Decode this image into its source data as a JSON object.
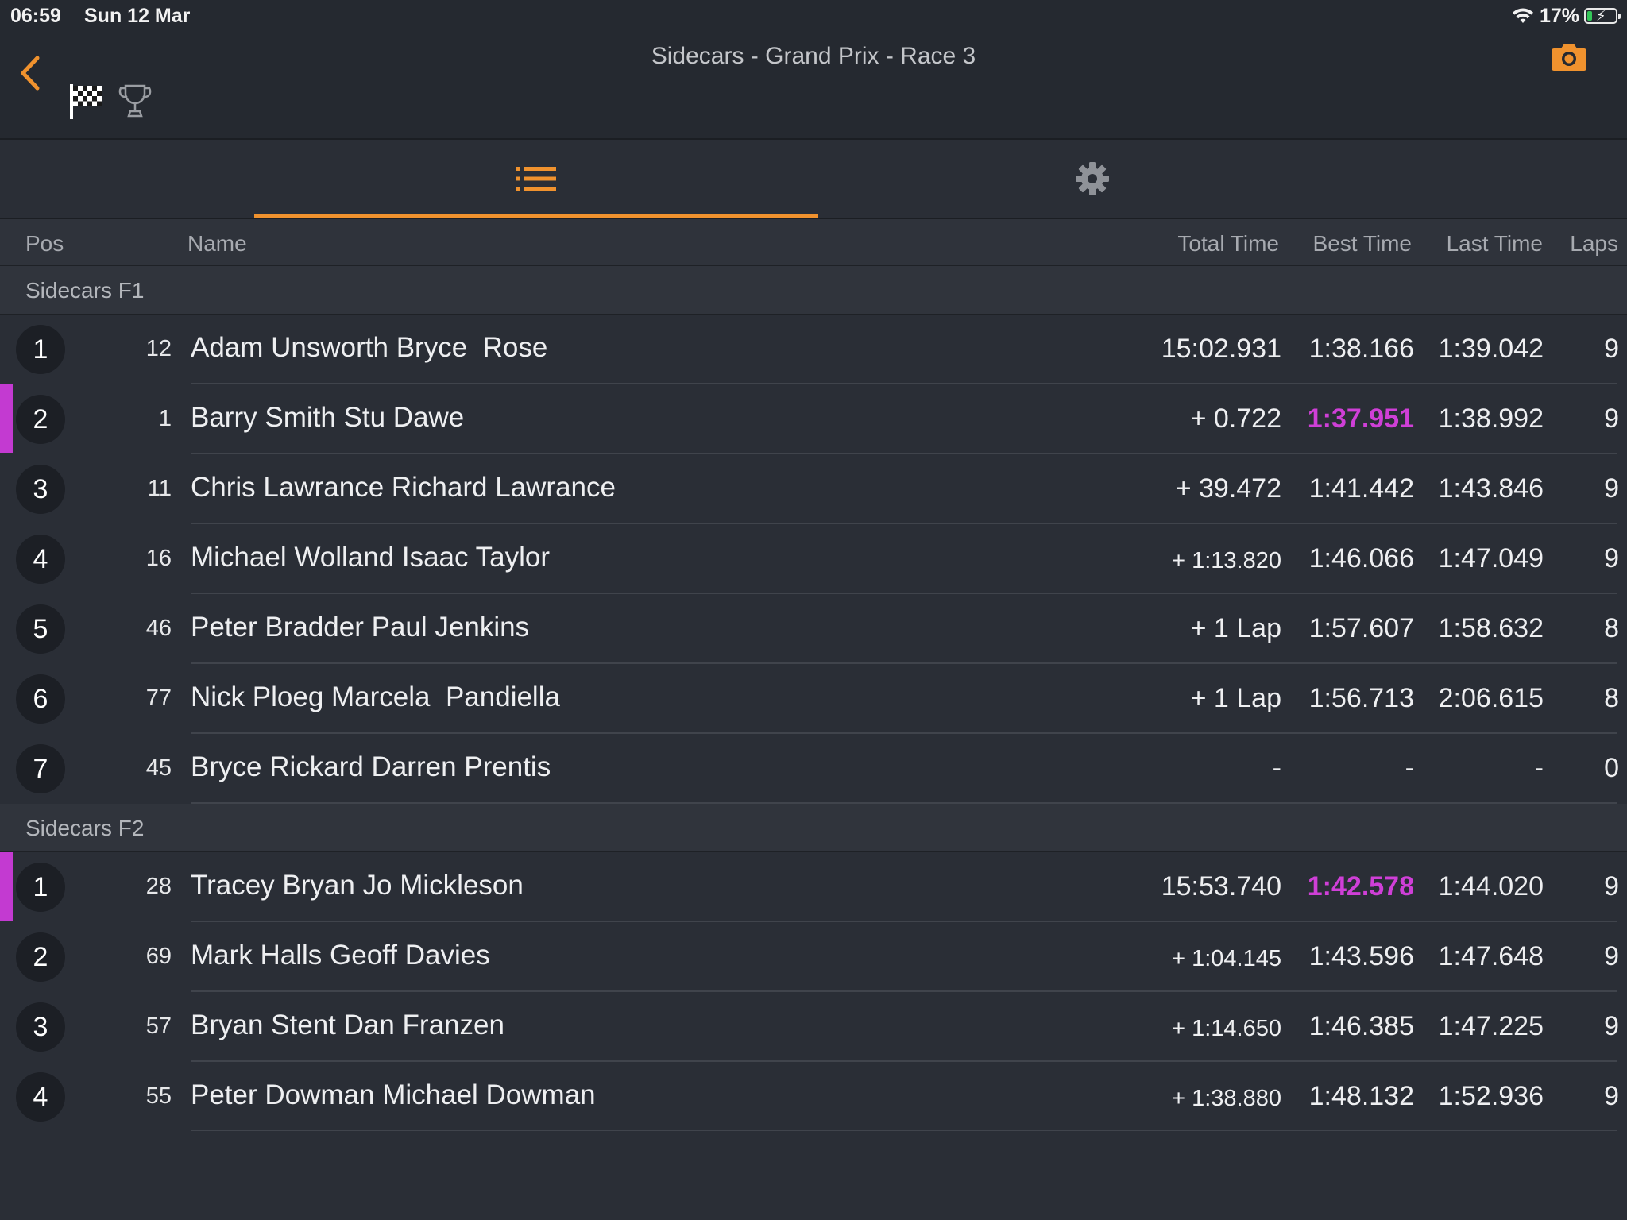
{
  "status_bar": {
    "time": "06:59",
    "date": "Sun 12 Mar",
    "battery_percent": "17%"
  },
  "header": {
    "title": "Sidecars - Grand Prix - Race 3"
  },
  "columns": {
    "pos": "Pos",
    "name": "Name",
    "total": "Total Time",
    "best": "Best Time",
    "last": "Last Time",
    "laps": "Laps"
  },
  "groups": [
    {
      "name": "Sidecars F1",
      "rows": [
        {
          "pos": "1",
          "num": "12",
          "name": "Adam Unsworth Bryce  Rose",
          "total": "15:02.931",
          "best": "1:38.166",
          "last": "1:39.042",
          "laps": "9"
        },
        {
          "pos": "2",
          "num": "1",
          "name": "Barry Smith Stu Dawe",
          "total": "+ 0.722",
          "best": "1:37.951",
          "last": "1:38.992",
          "laps": "9"
        },
        {
          "pos": "3",
          "num": "11",
          "name": "Chris Lawrance Richard Lawrance",
          "total": "+ 39.472",
          "best": "1:41.442",
          "last": "1:43.846",
          "laps": "9"
        },
        {
          "pos": "4",
          "num": "16",
          "name": "Michael Wolland Isaac Taylor",
          "total": "+ 1:13.820",
          "best": "1:46.066",
          "last": "1:47.049",
          "laps": "9"
        },
        {
          "pos": "5",
          "num": "46",
          "name": "Peter Bradder Paul Jenkins",
          "total": "+ 1 Lap",
          "best": "1:57.607",
          "last": "1:58.632",
          "laps": "8"
        },
        {
          "pos": "6",
          "num": "77",
          "name": "Nick Ploeg Marcela  Pandiella",
          "total": "+ 1 Lap",
          "best": "1:56.713",
          "last": "2:06.615",
          "laps": "8"
        },
        {
          "pos": "7",
          "num": "45",
          "name": "Bryce Rickard Darren Prentis",
          "total": "-",
          "best": "-",
          "last": "-",
          "laps": "0"
        }
      ]
    },
    {
      "name": "Sidecars F2",
      "rows": [
        {
          "pos": "1",
          "num": "28",
          "name": "Tracey Bryan Jo Mickleson",
          "total": "15:53.740",
          "best": "1:42.578",
          "last": "1:44.020",
          "laps": "9"
        },
        {
          "pos": "2",
          "num": "69",
          "name": "Mark Halls Geoff Davies",
          "total": "+ 1:04.145",
          "best": "1:43.596",
          "last": "1:47.648",
          "laps": "9"
        },
        {
          "pos": "3",
          "num": "57",
          "name": "Bryan Stent Dan Franzen",
          "total": "+ 1:14.650",
          "best": "1:46.385",
          "last": "1:47.225",
          "laps": "9"
        },
        {
          "pos": "4",
          "num": "55",
          "name": "Peter Dowman Michael Dowman",
          "total": "+ 1:38.880",
          "best": "1:48.132",
          "last": "1:52.936",
          "laps": "9"
        }
      ]
    }
  ],
  "colors": {
    "accent": "#f0922e",
    "fastest": "#cf3fd7",
    "background": "#2a2e36"
  },
  "icons": {
    "back": "chevron-left-icon",
    "camera": "camera-icon",
    "flag": "checkered-flag-icon",
    "trophy": "trophy-icon",
    "list": "list-icon",
    "settings": "gear-icon"
  }
}
